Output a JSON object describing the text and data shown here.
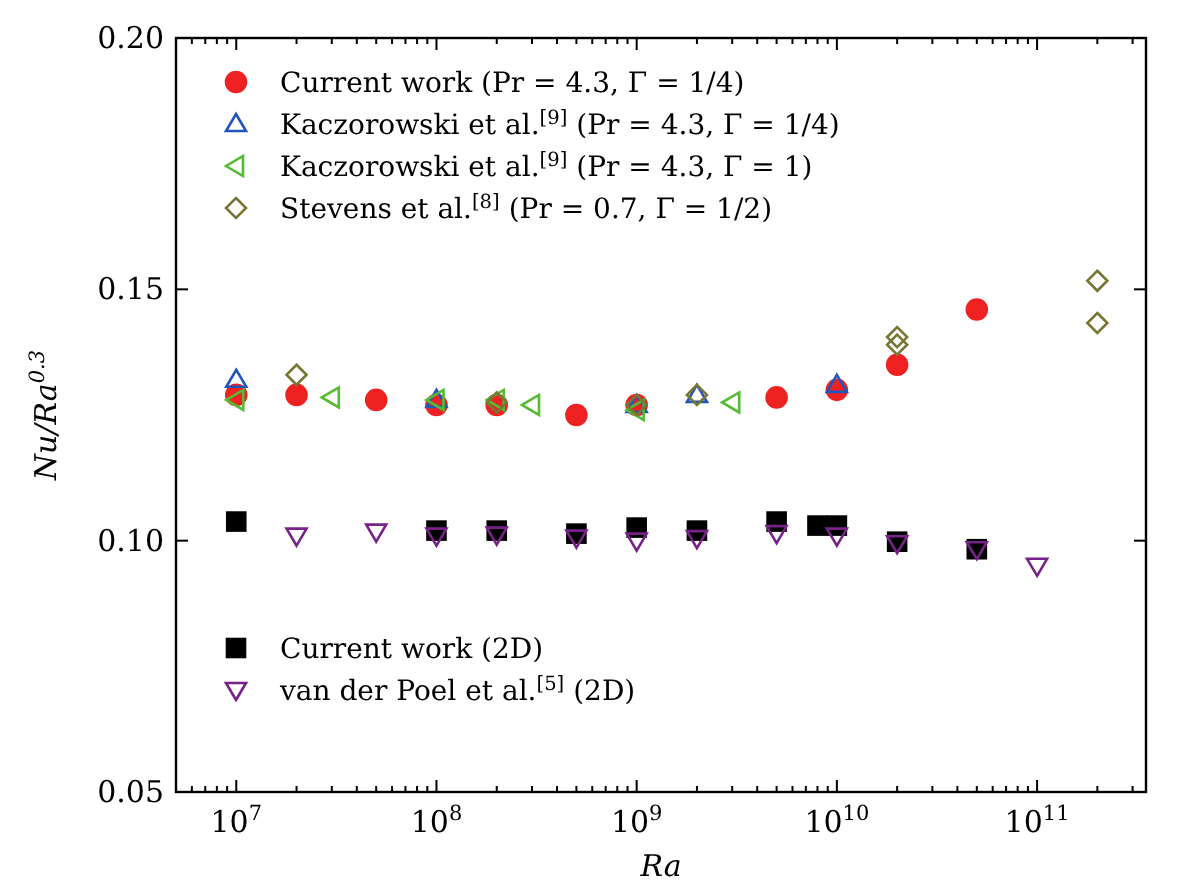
{
  "chart_data": {
    "type": "scatter",
    "xlabel": "Ra",
    "ylabel": "Nu/Ra$^{0.3}$",
    "log": "x",
    "xlim": [
      5000000.0,
      350000000000.0
    ],
    "ylim": [
      0.05,
      0.2
    ],
    "yticks": [
      0.05,
      {
        "value": 0.1,
        "label": "0.10"
      },
      0.15,
      {
        "value": 0.2,
        "label": "0.20"
      }
    ],
    "xticks": [
      {
        "value": 6000000.0,
        "label": null
      },
      {
        "value": 7000000.0,
        "label": null
      },
      {
        "value": 8000000.0,
        "label": null
      },
      {
        "value": 9000000.0,
        "label": null
      },
      {
        "value": 10000000.0,
        "label": "10$^{7}$"
      },
      {
        "value": 20000000.0,
        "label": null
      },
      {
        "value": 30000000.0,
        "label": null
      },
      {
        "value": 40000000.0,
        "label": null
      },
      {
        "value": 50000000.0,
        "label": null
      },
      {
        "value": 60000000.0,
        "label": null
      },
      {
        "value": 70000000.0,
        "label": null
      },
      {
        "value": 80000000.0,
        "label": null
      },
      {
        "value": 90000000.0,
        "label": null
      },
      {
        "value": 100000000.0,
        "label": "10$^{8}$"
      },
      {
        "value": 200000000.0,
        "label": null
      },
      {
        "value": 300000000.0,
        "label": null
      },
      {
        "value": 400000000.0,
        "label": null
      },
      {
        "value": 500000000.0,
        "label": null
      },
      {
        "value": 600000000.0,
        "label": null
      },
      {
        "value": 700000000.0,
        "label": null
      },
      {
        "value": 800000000.0,
        "label": null
      },
      {
        "value": 900000000.0,
        "label": null
      },
      {
        "value": 1000000000.0,
        "label": "10$^{9}$"
      },
      {
        "value": 2000000000.0,
        "label": null
      },
      {
        "value": 3000000000.0,
        "label": null
      },
      {
        "value": 4000000000.0,
        "label": null
      },
      {
        "value": 5000000000.0,
        "label": null
      },
      {
        "value": 6000000000.0,
        "label": null
      },
      {
        "value": 7000000000.0,
        "label": null
      },
      {
        "value": 8000000000.0,
        "label": null
      },
      {
        "value": 9000000000.0,
        "label": null
      },
      {
        "value": 10000000000.0,
        "label": "10$^{10}$"
      },
      {
        "value": 20000000000.0,
        "label": null
      },
      {
        "value": 30000000000.0,
        "label": null
      },
      {
        "value": 40000000000.0,
        "label": null
      },
      {
        "value": 50000000000.0,
        "label": null
      },
      {
        "value": 60000000000.0,
        "label": null
      },
      {
        "value": 70000000000.0,
        "label": null
      },
      {
        "value": 80000000000.0,
        "label": null
      },
      {
        "value": 90000000000.0,
        "label": null
      },
      {
        "value": 100000000000.0,
        "label": "10$^{11}$"
      },
      {
        "value": 200000000000.0,
        "label": null
      },
      {
        "value": 300000000000.0,
        "label": null
      }
    ],
    "legend": "top left",
    "series": [
      {
        "name": "Current work (Pr = 4.3, Γ = 1/4)",
        "color": "#ee2222",
        "marker": "circle",
        "x": [
          10000000.0,
          20000000.0,
          50000000.0,
          100000000.0,
          200000000.0,
          500000000.0,
          1000000000.0,
          5000000000.0,
          10000000000.0,
          20000000000.0,
          50000000000.0
        ],
        "values": [
          0.129,
          0.129,
          0.128,
          0.127,
          0.127,
          0.125,
          0.127,
          0.1285,
          0.13,
          0.135,
          0.146
        ]
      },
      {
        "name": "Kaczorowski et al.$^{[9]}$ (Pr = 4.3, Γ = 1/4)",
        "color": "#2255bb",
        "marker": "triangle",
        "x": [
          10000000.0,
          100000000.0,
          1000000000.0,
          2000000000.0,
          10000000000.0
        ],
        "values": [
          0.132,
          0.128,
          0.127,
          0.129,
          0.131
        ]
      },
      {
        "name": "Kaczorowski et al.$^{[9]}$ (Pr = 4.3, Γ = 1)",
        "color": "#55bb33",
        "marker": "triangle-left",
        "x": [
          10000000.0,
          30000000.0,
          100000000.0,
          200000000.0,
          300000000.0,
          1000000000.0,
          3000000000.0
        ],
        "values": [
          0.128,
          0.1285,
          0.128,
          0.128,
          0.127,
          0.126,
          0.1275
        ]
      },
      {
        "name": "Stevens et al.$^{[8]}$ (Pr = 0.7, Γ = 1/2)",
        "color": "#777733",
        "marker": "diamond",
        "x": [
          20000000.0,
          200000000.0,
          1000000000.0,
          2000000000.0,
          20000000000.0,
          20000000000.0,
          200000000000.0,
          200000000000.0
        ],
        "values": [
          0.133,
          0.1275,
          0.127,
          0.129,
          0.1405,
          0.139,
          0.1517,
          0.1433
        ]
      },
      {
        "name": "Current work (2D)",
        "color": "#000000",
        "marker": "square",
        "x": [
          10000000.0,
          100000000.0,
          200000000.0,
          500000000.0,
          1000000000.0,
          2000000000.0,
          5000000000.0,
          8000000000.0,
          10000000000.0,
          20000000000.0,
          50000000000.0
        ],
        "values": [
          0.1038,
          0.102,
          0.102,
          0.1014,
          0.1026,
          0.102,
          0.1038,
          0.103,
          0.103,
          0.0998,
          0.0983
        ]
      },
      {
        "name": "van der Poel et al.$^{[5]}$ (2D)",
        "color": "#772288",
        "marker": "triangle-down",
        "x": [
          20000000.0,
          50000000.0,
          100000000.0,
          200000000.0,
          500000000.0,
          1000000000.0,
          2000000000.0,
          5000000000.0,
          10000000000.0,
          20000000000.0,
          50000000000.0,
          100000000000.0
        ],
        "values": [
          0.101,
          0.1018,
          0.101,
          0.1012,
          0.1006,
          0.1,
          0.1005,
          0.1015,
          0.101,
          0.0995,
          0.0983,
          0.095
        ]
      }
    ]
  }
}
